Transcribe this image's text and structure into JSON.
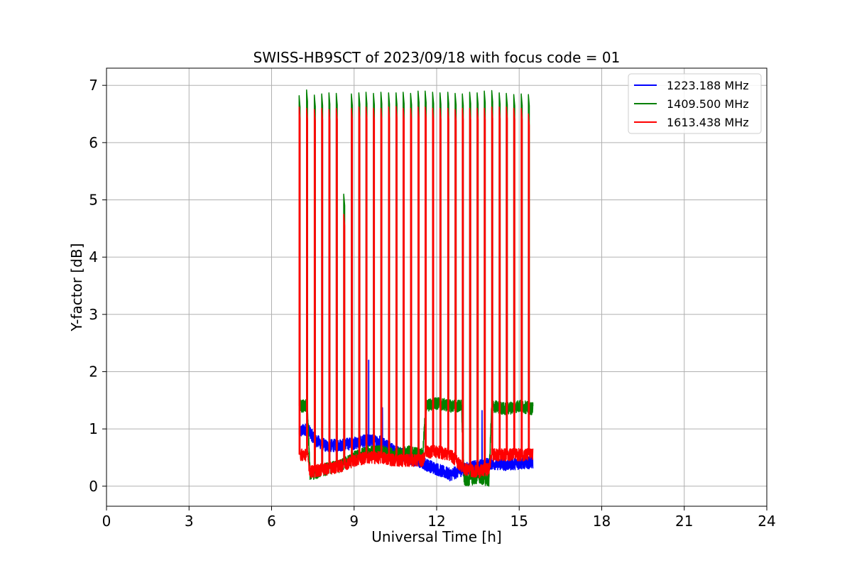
{
  "chart_data": {
    "type": "line",
    "title": "SWISS-HB9SCT of 2023/09/18 with focus code = 01",
    "xlabel": "Universal Time [h]",
    "ylabel": "Y-factor [dB]",
    "xlim": [
      0,
      24
    ],
    "ylim": [
      -0.35,
      7.3
    ],
    "xticks": [
      "0",
      "3",
      "6",
      "9",
      "12",
      "15",
      "18",
      "21",
      "24"
    ],
    "yticks": [
      "0",
      "1",
      "2",
      "3",
      "4",
      "5",
      "6",
      "7"
    ],
    "grid": true,
    "legend_position": "top-right",
    "calibration_pulse_times_h": [
      7.0,
      7.27,
      7.55,
      7.82,
      8.08,
      8.35,
      8.62,
      8.9,
      9.17,
      9.43,
      9.7,
      9.97,
      10.25,
      10.52,
      10.78,
      11.05,
      11.32,
      11.58,
      11.85,
      12.12,
      12.4,
      12.67,
      12.93,
      13.2,
      13.47,
      13.73,
      14.0,
      14.27,
      14.53,
      14.8,
      15.07,
      15.33
    ],
    "series": [
      {
        "name": "1223.188 MHz",
        "color": "#0000ff",
        "baseline": [
          [
            7.0,
            0.95
          ],
          [
            7.3,
            1.0
          ],
          [
            7.6,
            0.8
          ],
          [
            8.0,
            0.7
          ],
          [
            8.5,
            0.72
          ],
          [
            9.0,
            0.75
          ],
          [
            9.5,
            0.8
          ],
          [
            10.0,
            0.78
          ],
          [
            10.5,
            0.6
          ],
          [
            11.0,
            0.5
          ],
          [
            11.5,
            0.4
          ],
          [
            12.0,
            0.3
          ],
          [
            12.5,
            0.2
          ],
          [
            13.0,
            0.3
          ],
          [
            13.5,
            0.35
          ],
          [
            14.0,
            0.4
          ],
          [
            14.5,
            0.38
          ],
          [
            15.0,
            0.4
          ],
          [
            15.5,
            0.42
          ]
        ],
        "spikes": [
          [
            9.53,
            2.2
          ],
          [
            10.03,
            1.37
          ],
          [
            13.65,
            1.32
          ]
        ]
      },
      {
        "name": "1409.500 MHz",
        "color": "#008000",
        "baseline": [
          [
            7.0,
            1.4
          ],
          [
            7.3,
            1.4
          ],
          [
            7.4,
            0.2
          ],
          [
            8.0,
            0.3
          ],
          [
            8.5,
            0.35
          ],
          [
            9.0,
            0.5
          ],
          [
            9.5,
            0.6
          ],
          [
            10.0,
            0.6
          ],
          [
            10.5,
            0.55
          ],
          [
            11.0,
            0.6
          ],
          [
            11.5,
            0.55
          ],
          [
            11.6,
            1.4
          ],
          [
            12.0,
            1.45
          ],
          [
            12.5,
            1.4
          ],
          [
            12.9,
            1.4
          ],
          [
            13.0,
            0.1
          ],
          [
            13.5,
            0.15
          ],
          [
            13.9,
            0.1
          ],
          [
            14.0,
            1.4
          ],
          [
            14.5,
            1.35
          ],
          [
            15.0,
            1.4
          ],
          [
            15.5,
            1.35
          ]
        ],
        "peaks": [
          6.82,
          6.92,
          6.83,
          6.85,
          6.87,
          6.86,
          5.1,
          6.85,
          6.87,
          6.88,
          6.86,
          6.88,
          6.87,
          6.87,
          6.88,
          6.86,
          6.9,
          6.9,
          6.88,
          6.87,
          6.88,
          6.86,
          6.85,
          6.88,
          6.87,
          6.9,
          6.91,
          6.87,
          6.86,
          6.84,
          6.85,
          6.84
        ]
      },
      {
        "name": "1613.438 MHz",
        "color": "#ff0000",
        "baseline": [
          [
            7.0,
            0.55
          ],
          [
            7.3,
            0.55
          ],
          [
            7.4,
            0.25
          ],
          [
            8.0,
            0.3
          ],
          [
            8.5,
            0.35
          ],
          [
            9.0,
            0.45
          ],
          [
            9.5,
            0.5
          ],
          [
            10.0,
            0.5
          ],
          [
            10.5,
            0.45
          ],
          [
            11.0,
            0.45
          ],
          [
            11.5,
            0.45
          ],
          [
            11.6,
            0.6
          ],
          [
            12.0,
            0.6
          ],
          [
            12.5,
            0.55
          ],
          [
            13.0,
            0.3
          ],
          [
            13.5,
            0.25
          ],
          [
            13.9,
            0.3
          ],
          [
            14.0,
            0.55
          ],
          [
            14.5,
            0.55
          ],
          [
            15.0,
            0.55
          ],
          [
            15.5,
            0.55
          ]
        ],
        "peaks": [
          6.62,
          6.6,
          6.58,
          6.6,
          6.58,
          6.6,
          4.75,
          6.6,
          6.62,
          6.62,
          6.6,
          6.6,
          6.62,
          6.63,
          6.6,
          6.6,
          6.62,
          6.62,
          6.6,
          6.6,
          6.6,
          6.58,
          6.6,
          6.6,
          6.6,
          6.6,
          6.62,
          6.62,
          6.62,
          6.6,
          6.6,
          6.5
        ]
      }
    ]
  }
}
